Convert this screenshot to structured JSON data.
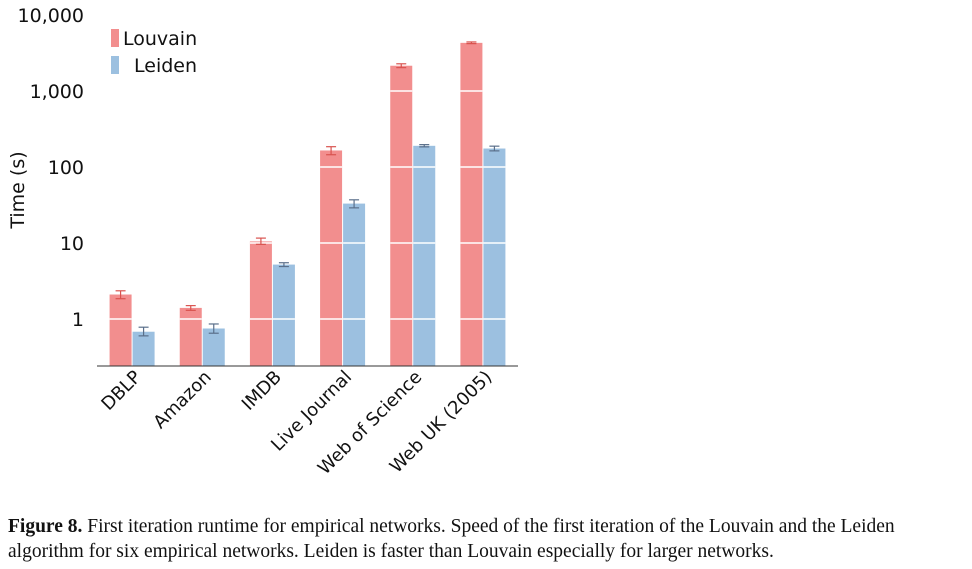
{
  "chart_data": {
    "type": "bar",
    "scale": "log",
    "ylabel": "Time (s)",
    "ylim": [
      0.3,
      10000
    ],
    "yticks": [
      {
        "value": 1,
        "label": "1"
      },
      {
        "value": 10,
        "label": "10"
      },
      {
        "value": 100,
        "label": "100"
      },
      {
        "value": 1000,
        "label": "1,000"
      },
      {
        "value": 10000,
        "label": "10,000"
      }
    ],
    "categories": [
      "DBLP",
      "Amazon",
      "IMDB",
      "Live Journal",
      "Web of Science",
      "Web UK (2005)"
    ],
    "series": [
      {
        "name": "Louvain",
        "color": "#f28e8e",
        "errcolor": "#d9534f",
        "values": [
          2.1,
          1.4,
          10.5,
          165,
          2150,
          4300
        ],
        "err_low": [
          1.85,
          1.3,
          9.6,
          145,
          2030,
          4200
        ],
        "err_high": [
          2.35,
          1.5,
          11.6,
          185,
          2280,
          4420
        ]
      },
      {
        "name": "Leiden",
        "color": "#9cc0e0",
        "errcolor": "#5a6f8a",
        "values": [
          0.68,
          0.75,
          5.2,
          33,
          190,
          175
        ],
        "err_low": [
          0.6,
          0.65,
          4.9,
          29,
          184,
          163
        ],
        "err_high": [
          0.78,
          0.86,
          5.5,
          37,
          197,
          188
        ]
      }
    ],
    "grid": "horizontal-white-over-bars",
    "legend": "top-left"
  },
  "caption": {
    "label": "Figure 8.",
    "text": "First iteration runtime for empirical networks. Speed of the first iteration of the Louvain and the Leiden algorithm for six empirical networks. Leiden is faster than Louvain especially for larger networks."
  }
}
